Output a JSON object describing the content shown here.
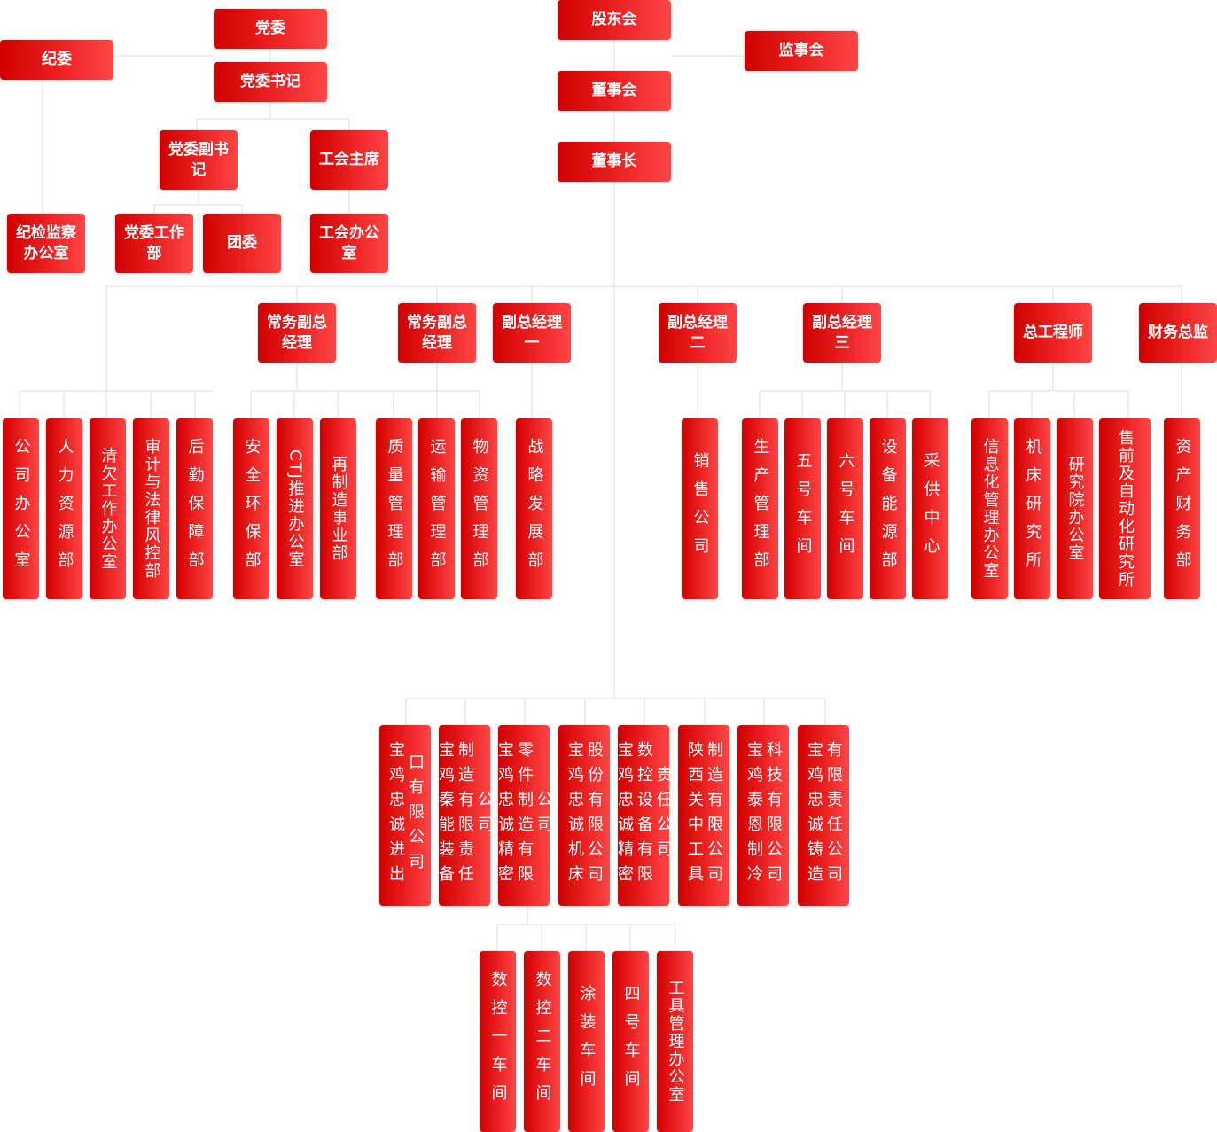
{
  "colors": {
    "box": "#e01010",
    "line": "#dddddd"
  },
  "top": {
    "party": "党委",
    "discipline": "纪委",
    "party_secretary": "党委书记",
    "shareholders": "股东会",
    "supervisors": "监事会",
    "board": "董事会",
    "chairman": "董事长",
    "deputy_secretary": "党委副书记",
    "union_chair": "工会主席",
    "discipline_office": "纪检监察办公室",
    "party_work_dept": "党委工作部",
    "youth_league": "团委",
    "union_office": "工会办公室"
  },
  "managers": [
    "常务副总经理",
    "常务副总经理",
    "副总经理一",
    "副总经理二",
    "副总经理三",
    "总工程师",
    "财务总监"
  ],
  "departments": [
    "公司办公室",
    "人力资源部",
    "清欠工作办公室",
    "审计与法律风控部",
    "后勤保障部",
    "安全环保部",
    "CTJ推进办公室",
    "再制造事业部",
    "质量管理部",
    "运输管理部",
    "物资管理部",
    "战略发展部",
    "销售公司",
    "生产管理部",
    "五号车间",
    "六号车间",
    "设备能源部",
    "采供中心",
    "信息化管理办公室",
    "机床研究所",
    "研究院办公室",
    "售前及自动化研究所",
    "资产财务部"
  ],
  "subsidiaries": [
    "宝鸡忠诚进出口有限公司",
    "宝鸡秦能装备制造有限责任公司",
    "宝鸡忠诚精密零件制造有限公司",
    "宝鸡忠诚机床股份有限公司",
    "宝鸡忠诚精密数控设备有限责任公司",
    "陕西关中工具制造有限公司",
    "宝鸡泰恩制冷科技有限公司",
    "宝鸡忠诚铸造有限责任公司"
  ],
  "workshops": [
    "数控一车间",
    "数控二车间",
    "涂装车间",
    "四号车间",
    "工具管理办公室"
  ]
}
